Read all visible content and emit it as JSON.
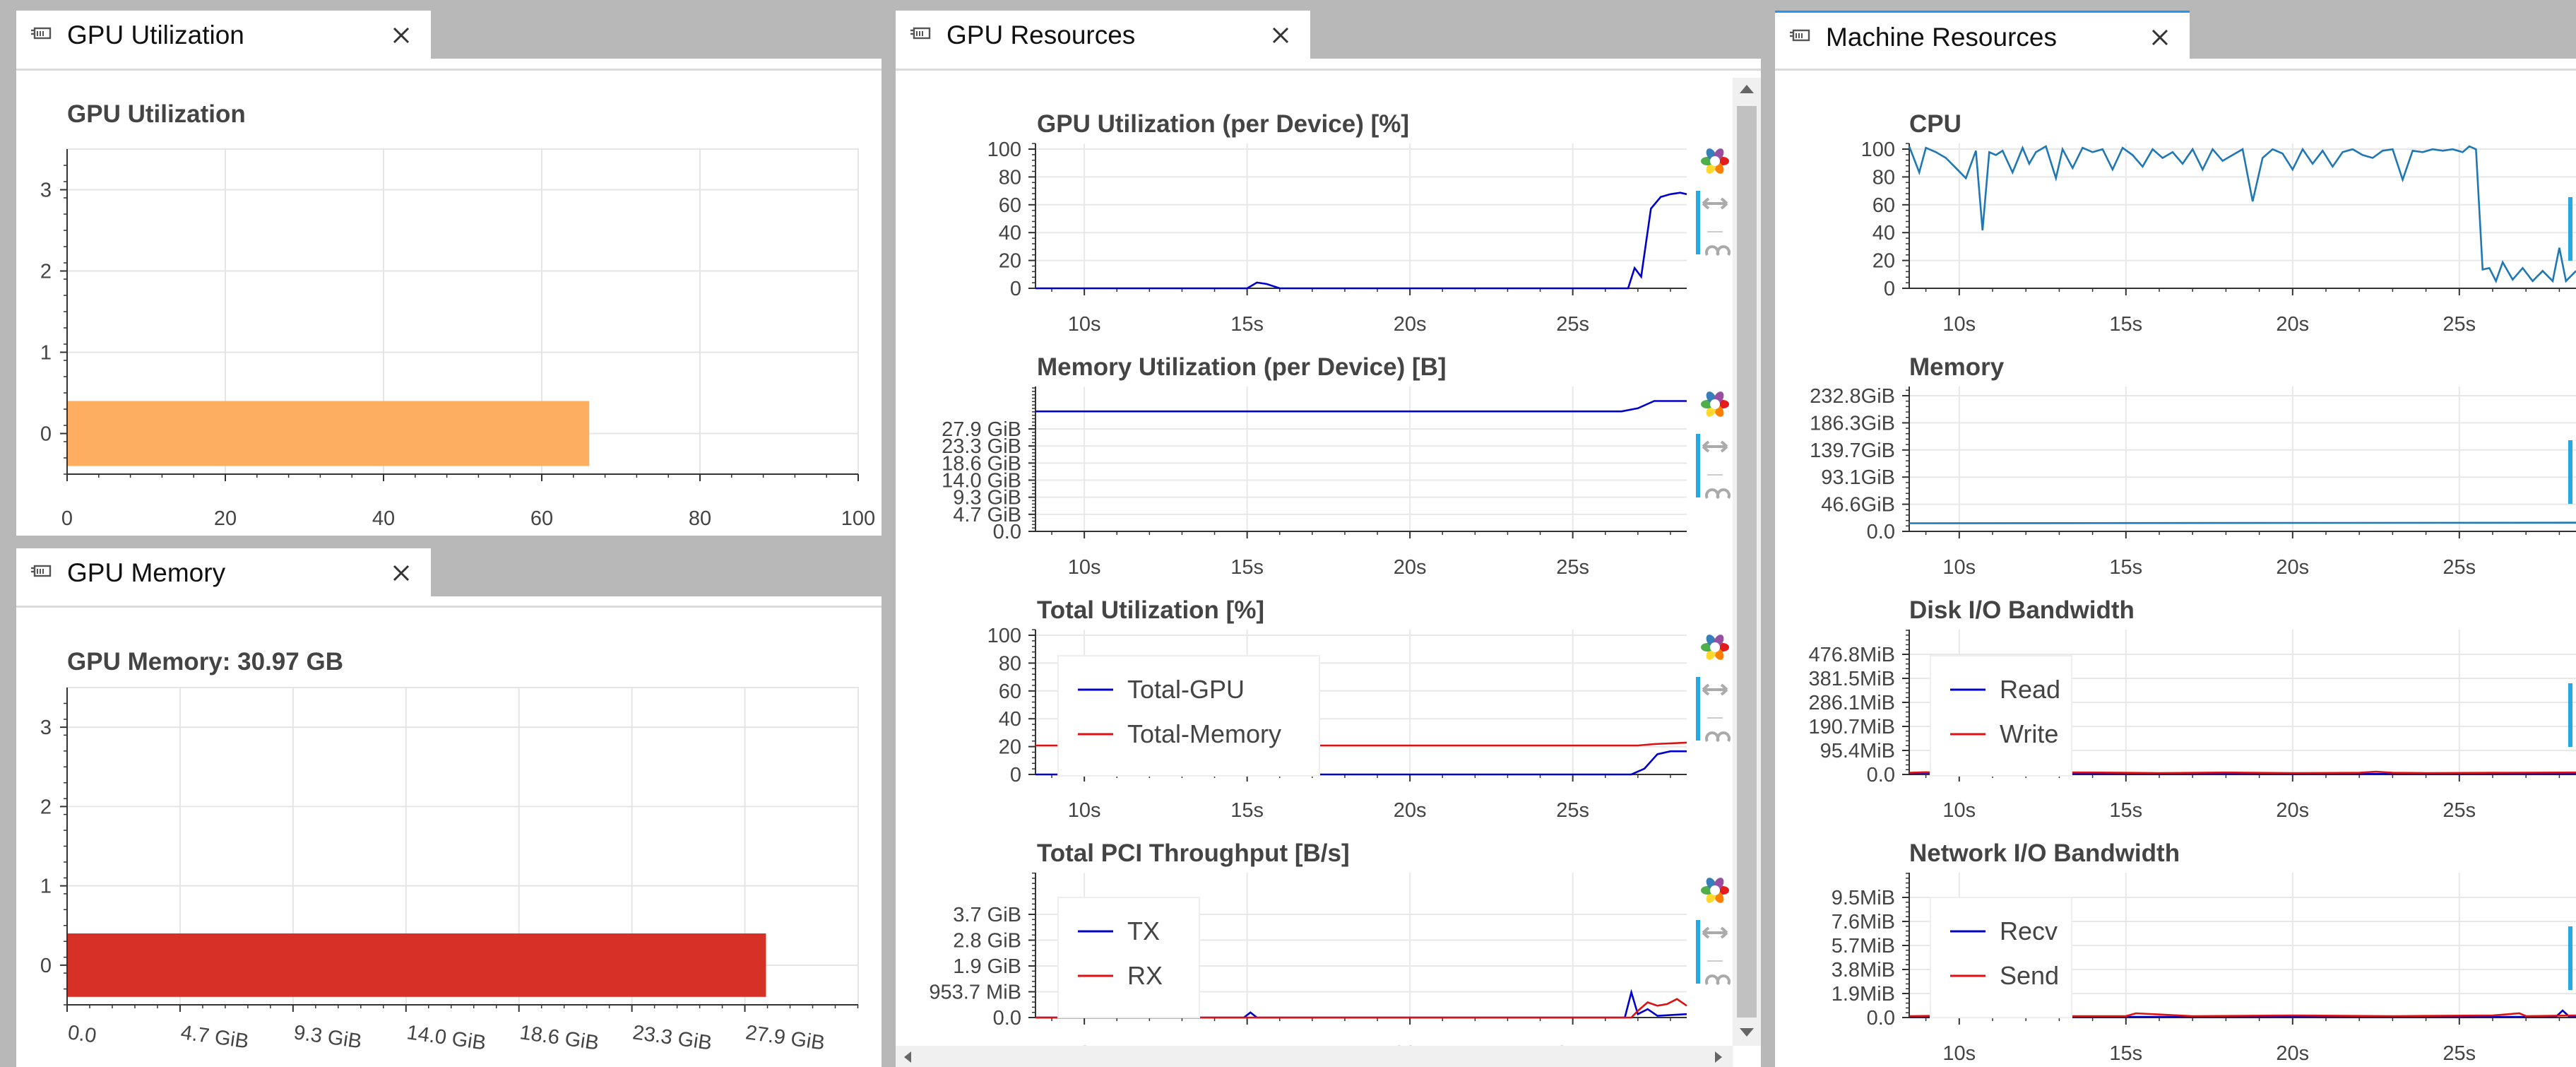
{
  "tabs": {
    "gpu_utilization": "GPU Utilization",
    "gpu_memory": "GPU Memory",
    "gpu_resources": "GPU Resources",
    "machine_resources": "Machine Resources"
  },
  "gpu_util_panel": {
    "chart_data": {
      "type": "bar",
      "title": "GPU Utilization",
      "orientation": "horizontal",
      "categories": [
        "0"
      ],
      "values": [
        66
      ],
      "xlim": [
        0,
        100
      ],
      "ylim": [
        -0.5,
        3.5
      ],
      "x_ticks": [
        "0",
        "20",
        "40",
        "60",
        "80",
        "100"
      ],
      "y_ticks": [
        "0",
        "1",
        "2",
        "3"
      ],
      "bar_color": "#fdae61",
      "grid": true
    }
  },
  "gpu_memory_panel": {
    "chart_data": {
      "type": "bar",
      "title": "GPU Memory: 30.97 GB",
      "orientation": "horizontal",
      "categories": [
        "0"
      ],
      "values_gib": [
        28.8
      ],
      "xlim_gib": [
        0,
        32.6
      ],
      "x_ticks": [
        "0.0",
        "4.7 GiB",
        "9.3 GiB",
        "14.0 GiB",
        "18.6 GiB",
        "23.3 GiB",
        "27.9 GiB"
      ],
      "y_ticks": [
        "0",
        "1",
        "2",
        "3"
      ],
      "bar_color": "#d73027",
      "grid": true
    }
  },
  "gpu_resources": {
    "charts": [
      {
        "type": "line",
        "title": "GPU Utilization (per Device) [%]",
        "y_ticks": [
          "100",
          "80",
          "60",
          "40",
          "20",
          "0"
        ],
        "x_ticks": [
          "10s",
          "15s",
          "20s",
          "25s"
        ],
        "ylim": [
          0,
          100
        ],
        "xlim_s": [
          8.5,
          28.5
        ],
        "series": [
          {
            "color": "#0000cc",
            "x": [
              8.5,
              15.0,
              15.3,
              15.6,
              16.0,
              26.7,
              26.9,
              27.1,
              27.4,
              27.7,
              28.0,
              28.3,
              28.5
            ],
            "y": [
              0,
              0,
              4,
              3,
              0,
              0,
              14,
              8,
              55,
              63,
              65,
              66,
              65
            ]
          }
        ]
      },
      {
        "type": "line",
        "title": "Memory Utilization (per Device) [B]",
        "y_ticks": [
          "27.9 GiB",
          "23.3 GiB",
          "18.6 GiB",
          "14.0 GiB",
          "9.3 GiB",
          "4.7 GiB",
          "0.0"
        ],
        "x_ticks": [
          "10s",
          "15s",
          "20s",
          "25s"
        ],
        "ylim_gib": [
          0,
          32.0
        ],
        "xlim_s": [
          8.5,
          28.5
        ],
        "series": [
          {
            "color": "#0000cc",
            "x": [
              8.5,
              26.5,
              27.0,
              27.5,
              28.5
            ],
            "y": [
              26.5,
              26.5,
              27.2,
              28.8,
              28.8
            ]
          }
        ]
      },
      {
        "type": "line",
        "title": "Total Utilization [%]",
        "y_ticks": [
          "100",
          "80",
          "60",
          "40",
          "20",
          "0"
        ],
        "x_ticks": [
          "10s",
          "15s",
          "20s",
          "25s"
        ],
        "ylim": [
          0,
          100
        ],
        "xlim_s": [
          8.5,
          28.5
        ],
        "legend": [
          "Total-GPU",
          "Total-Memory"
        ],
        "series": [
          {
            "name": "Total-GPU",
            "color": "#0000cc",
            "x": [
              8.5,
              26.8,
              27.2,
              27.6,
              28.0,
              28.5
            ],
            "y": [
              0,
              0,
              4,
              14,
              16,
              16
            ]
          },
          {
            "name": "Total-Memory",
            "color": "#dd1111",
            "x": [
              8.5,
              27.0,
              27.5,
              28.5
            ],
            "y": [
              20,
              20,
              21,
              22
            ]
          }
        ]
      },
      {
        "type": "line",
        "title": "Total PCI Throughput [B/s]",
        "y_ticks": [
          "3.7 GiB",
          "2.8 GiB",
          "1.9 GiB",
          "953.7 MiB",
          "0.0"
        ],
        "x_ticks": [
          "10s",
          "15s",
          "20s",
          "25s"
        ],
        "ylim_gib": [
          0,
          4.3
        ],
        "xlim_s": [
          8.5,
          28.5
        ],
        "legend": [
          "TX",
          "RX"
        ],
        "series": [
          {
            "name": "TX",
            "color": "#0000cc",
            "x": [
              8.5,
              14.9,
              15.1,
              15.3,
              26.6,
              26.8,
              27.0,
              27.3,
              27.6,
              28.5
            ],
            "y": [
              0,
              0,
              0.15,
              0,
              0,
              0.75,
              0.1,
              0.25,
              0.05,
              0.1
            ]
          },
          {
            "name": "RX",
            "color": "#dd1111",
            "x": [
              8.5,
              26.8,
              27.0,
              27.3,
              27.6,
              27.9,
              28.2,
              28.5
            ],
            "y": [
              0,
              0,
              0.2,
              0.45,
              0.35,
              0.4,
              0.55,
              0.35
            ]
          }
        ]
      }
    ]
  },
  "machine_resources": {
    "charts": [
      {
        "type": "line",
        "title": "CPU",
        "y_ticks": [
          "100",
          "80",
          "60",
          "40",
          "20",
          "0"
        ],
        "x_ticks": [
          "10s",
          "15s",
          "20s",
          "25s"
        ],
        "ylim": [
          0,
          100
        ],
        "xlim_s": [
          8.5,
          28.5
        ],
        "series": [
          {
            "color": "#1f77b4",
            "x": [
              8.5,
              8.8,
              9.0,
              9.3,
              9.6,
              9.9,
              10.2,
              10.5,
              10.7,
              10.9,
              11.1,
              11.3,
              11.6,
              11.9,
              12.1,
              12.3,
              12.6,
              12.9,
              13.1,
              13.4,
              13.7,
              14.0,
              14.3,
              14.6,
              14.9,
              15.2,
              15.5,
              15.8,
              16.1,
              16.4,
              16.7,
              17.0,
              17.3,
              17.6,
              17.9,
              18.2,
              18.5,
              18.8,
              19.1,
              19.4,
              19.7,
              20.0,
              20.3,
              20.6,
              20.9,
              21.2,
              21.5,
              21.8,
              22.1,
              22.4,
              22.7,
              23.0,
              23.3,
              23.6,
              23.9,
              24.2,
              24.5,
              24.8,
              25.1,
              25.3,
              25.5,
              25.7,
              25.9,
              26.1,
              26.3,
              26.6,
              26.9,
              27.2,
              27.5,
              27.8,
              28.0,
              28.2,
              28.5
            ],
            "y": [
              98,
              80,
              97,
              94,
              90,
              83,
              76,
              95,
              40,
              94,
              92,
              95,
              80,
              97,
              86,
              94,
              98,
              76,
              96,
              83,
              97,
              94,
              96,
              82,
              97,
              92,
              84,
              96,
              90,
              94,
              86,
              96,
              82,
              96,
              88,
              92,
              96,
              60,
              90,
              96,
              93,
              82,
              96,
              86,
              95,
              84,
              94,
              96,
              92,
              90,
              95,
              96,
              75,
              95,
              94,
              96,
              95,
              96,
              94,
              98,
              96,
              13,
              14,
              5,
              18,
              6,
              14,
              5,
              12,
              5,
              28,
              5,
              12
            ]
          }
        ]
      },
      {
        "type": "line",
        "title": "Memory",
        "y_ticks": [
          "232.8GiB",
          "186.3GiB",
          "139.7GiB",
          "93.1GiB",
          "46.6GiB",
          "0.0"
        ],
        "x_ticks": [
          "10s",
          "15s",
          "20s",
          "25s"
        ],
        "ylim_gib": [
          0,
          250
        ],
        "xlim_s": [
          8.5,
          28.5
        ],
        "series": [
          {
            "color": "#1f77b4",
            "x": [
              8.5,
              28.5
            ],
            "y": [
              14,
              15
            ]
          }
        ]
      },
      {
        "type": "line",
        "title": "Disk I/O Bandwidth",
        "y_ticks": [
          "476.8MiB",
          "381.5MiB",
          "286.1MiB",
          "190.7MiB",
          "95.4MiB",
          "0.0"
        ],
        "x_ticks": [
          "10s",
          "15s",
          "20s",
          "25s"
        ],
        "ylim_mib": [
          0,
          510
        ],
        "xlim_s": [
          8.5,
          28.5
        ],
        "legend": [
          "Read",
          "Write"
        ],
        "series": [
          {
            "name": "Read",
            "color": "#0000cc",
            "x": [
              8.5,
              9.0,
              9.5,
              28.5
            ],
            "y": [
              2,
              6,
              2,
              2
            ]
          },
          {
            "name": "Write",
            "color": "#dd1111",
            "x": [
              8.5,
              9.0,
              10.0,
              12.0,
              14.0,
              16.0,
              18.0,
              20.0,
              22.0,
              22.5,
              23.0,
              24.0,
              26.0,
              28.5
            ],
            "y": [
              6,
              8,
              4,
              8,
              7,
              5,
              7,
              5,
              6,
              10,
              6,
              5,
              6,
              7
            ]
          }
        ]
      },
      {
        "type": "line",
        "title": "Network I/O Bandwidth",
        "y_ticks": [
          "9.5MiB",
          "7.6MiB",
          "5.7MiB",
          "3.8MiB",
          "1.9MiB",
          "0.0"
        ],
        "x_ticks": [
          "10s",
          "15s",
          "20s",
          "25s"
        ],
        "ylim_mib": [
          0,
          10.3
        ],
        "xlim_s": [
          8.5,
          28.5
        ],
        "legend": [
          "Recv",
          "Send"
        ],
        "series": [
          {
            "name": "Recv",
            "color": "#0000cc",
            "x": [
              8.5,
              27.9,
              28.1,
              28.3,
              28.5
            ],
            "y": [
              0.05,
              0.05,
              0.5,
              0.05,
              0.05
            ]
          },
          {
            "name": "Send",
            "color": "#dd1111",
            "x": [
              8.5,
              10.0,
              12.0,
              15.0,
              15.3,
              17.0,
              20.0,
              23.0,
              26.0,
              26.8,
              27.0,
              28.5
            ],
            "y": [
              0.1,
              0.15,
              0.1,
              0.1,
              0.3,
              0.1,
              0.15,
              0.1,
              0.15,
              0.3,
              0.1,
              0.15
            ]
          }
        ]
      }
    ]
  }
}
